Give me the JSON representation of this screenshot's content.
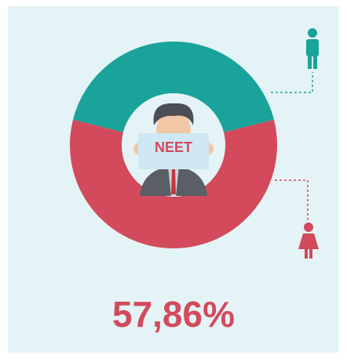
{
  "chart_data": {
    "type": "donut",
    "values": [
      42.14,
      57.86
    ],
    "value_labels": [
      null,
      "57,86%"
    ],
    "colors": [
      "#1aa39a",
      "#d24a5c"
    ],
    "center_label": "NEET"
  }
}
